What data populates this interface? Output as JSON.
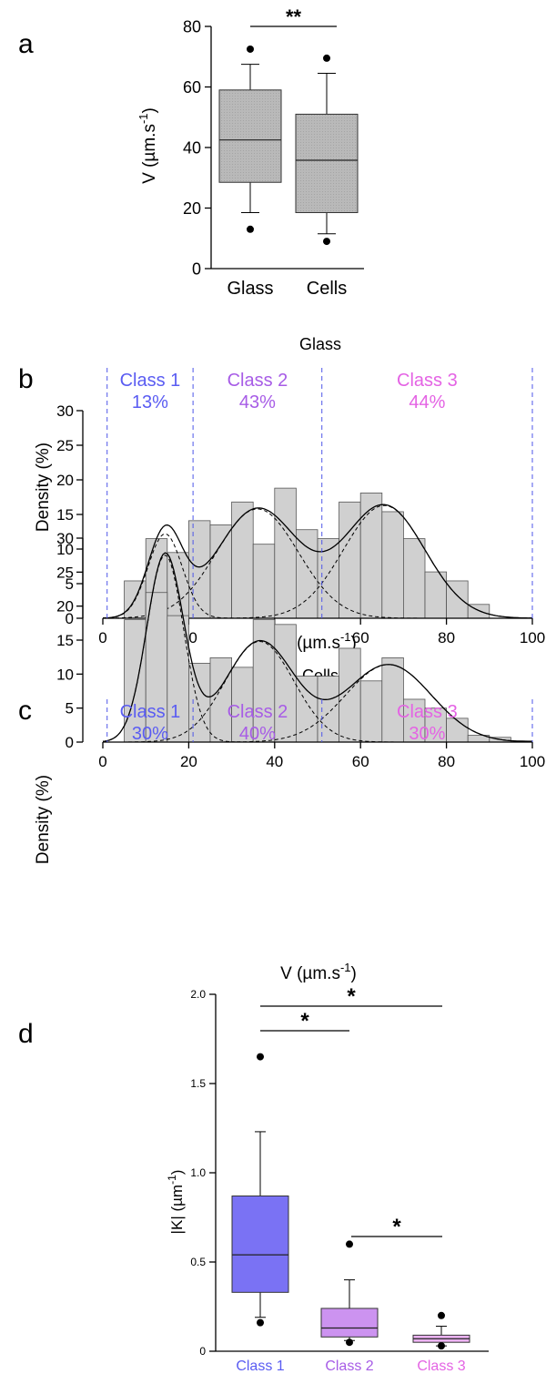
{
  "panel_labels": [
    "a",
    "b",
    "c",
    "d"
  ],
  "colors": {
    "box_gray": "#b9b9b9",
    "hist_fill": "#d0d0d0",
    "class1": "#5a5cf2",
    "class2": "#a75ce6",
    "class3": "#e463e4",
    "class1_box": "#7a72f4",
    "class2_box": "#cc93f0",
    "class3_box": "#ecb3f2",
    "divider": "#4d55e8"
  },
  "chart_data": [
    {
      "panel": "a",
      "type": "box",
      "categories": [
        "Glass",
        "Cells"
      ],
      "ylabel": "V (µm.s-1)",
      "ylim": [
        0,
        80
      ],
      "yticks": [
        0,
        20,
        40,
        60,
        80
      ],
      "boxes": [
        {
          "name": "Glass",
          "whisker_low": 18.5,
          "q1": 28.5,
          "median": 42.5,
          "q3": 59,
          "whisker_high": 67.5,
          "outliers": [
            13,
            72.5
          ]
        },
        {
          "name": "Cells",
          "whisker_low": 11.5,
          "q1": 18.5,
          "median": 35.8,
          "q3": 51,
          "whisker_high": 64.5,
          "outliers": [
            9,
            69.5
          ]
        }
      ],
      "significance": [
        {
          "from": "Glass",
          "to": "Cells",
          "label": "**"
        }
      ]
    },
    {
      "panel": "b",
      "type": "histogram",
      "title": "Glass",
      "xlabel": "V (µm.s-1)",
      "ylabel": "Density (%)",
      "xlim": [
        0,
        100
      ],
      "ylim": [
        0,
        30
      ],
      "xticks": [
        0,
        20,
        40,
        60,
        80,
        100
      ],
      "yticks": [
        0,
        5,
        10,
        15,
        20,
        25,
        30
      ],
      "bin_edges": [
        5,
        10,
        15,
        20,
        25,
        30,
        35,
        40,
        45,
        50,
        55,
        60,
        65,
        70,
        75,
        80,
        85,
        90
      ],
      "values": [
        5.4,
        11.5,
        9.5,
        14.1,
        13.5,
        16.8,
        10.7,
        18.8,
        12.8,
        11.5,
        16.8,
        18.1,
        15.4,
        11.5,
        6.7,
        5.4,
        2.0
      ],
      "class_boundaries": [
        1,
        21,
        51,
        100
      ],
      "classes": [
        {
          "label": "Class 1",
          "percent": "13%"
        },
        {
          "label": "Class 2",
          "percent": "43%"
        },
        {
          "label": "Class 3",
          "percent": "44%"
        }
      ],
      "components": [
        {
          "mean": 14.5,
          "sd": 4.0,
          "peak": 12.2
        },
        {
          "mean": 36,
          "sd": 9.5,
          "peak": 15.8
        },
        {
          "mean": 65.5,
          "sd": 9.5,
          "peak": 16.3
        }
      ]
    },
    {
      "panel": "c",
      "type": "histogram",
      "title": "Cells",
      "xlabel": "V (µm.s-1)",
      "ylabel": "Density (%)",
      "xlim": [
        0,
        100
      ],
      "ylim": [
        0,
        30
      ],
      "xticks": [
        0,
        20,
        40,
        60,
        80,
        100
      ],
      "yticks": [
        0,
        5,
        10,
        15,
        20,
        25,
        30
      ],
      "bin_edges": [
        5,
        10,
        15,
        20,
        25,
        30,
        35,
        40,
        45,
        50,
        55,
        60,
        65,
        70,
        75,
        80,
        85,
        90,
        95,
        100
      ],
      "values": [
        18.0,
        22.0,
        18.6,
        11.6,
        12.4,
        11.0,
        18.0,
        17.3,
        9.7,
        9.7,
        13.8,
        9.0,
        12.4,
        6.3,
        5.0,
        3.5,
        1.0,
        0.7,
        0.2
      ],
      "class_boundaries": [
        1,
        21,
        51,
        100
      ],
      "classes": [
        {
          "label": "Class 1",
          "percent": "30%"
        },
        {
          "label": "Class 2",
          "percent": "40%"
        },
        {
          "label": "Class 3",
          "percent": "30%"
        }
      ],
      "components": [
        {
          "mean": 14.5,
          "sd": 4.3,
          "peak": 27.5
        },
        {
          "mean": 36.5,
          "sd": 8.0,
          "peak": 14.8
        },
        {
          "mean": 66.5,
          "sd": 10.0,
          "peak": 11.4
        }
      ]
    },
    {
      "panel": "d",
      "type": "box",
      "categories": [
        "Class 1",
        "Class 2",
        "Class 3"
      ],
      "ylabel": "|K| (µm-1)",
      "ylim": [
        0,
        2.0
      ],
      "yticks": [
        0,
        0.5,
        1.0,
        1.5,
        2.0
      ],
      "ytick_labels": [
        "0",
        "0.5",
        "1.0",
        "1.5",
        "2.0"
      ],
      "boxes": [
        {
          "name": "Class 1",
          "whisker_low": 0.19,
          "q1": 0.33,
          "median": 0.54,
          "q3": 0.87,
          "whisker_high": 1.23,
          "outliers": [
            0.16,
            1.65
          ]
        },
        {
          "name": "Class 2",
          "whisker_low": 0.06,
          "q1": 0.08,
          "median": 0.13,
          "q3": 0.24,
          "whisker_high": 0.4,
          "outliers": [
            0.05,
            0.6
          ]
        },
        {
          "name": "Class 3",
          "whisker_low": 0.03,
          "q1": 0.05,
          "median": 0.07,
          "q3": 0.09,
          "whisker_high": 0.14,
          "outliers": [
            0.03,
            0.2
          ]
        }
      ],
      "significance": [
        {
          "from": "Class 1",
          "to": "Class 2",
          "label": "*"
        },
        {
          "from": "Class 1",
          "to": "Class 3",
          "label": "*"
        },
        {
          "from": "Class 2",
          "to": "Class 3",
          "label": "*"
        }
      ]
    }
  ]
}
